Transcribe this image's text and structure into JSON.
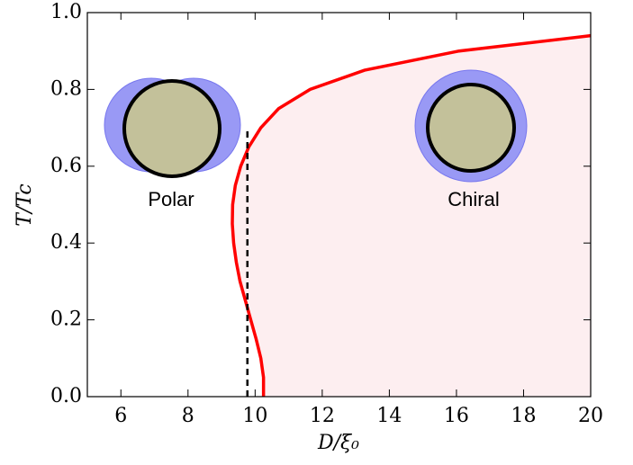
{
  "chart_data": {
    "type": "line",
    "x_label": "D/ξ₀",
    "y_label": "T/Tc",
    "annotations": [
      "Polar",
      "Chiral"
    ],
    "series": [
      {
        "color": "#ff0000",
        "fill": "#fdeef0",
        "dashed": false,
        "x": [
          10.25,
          10.25,
          10.17,
          10.03,
          9.87,
          9.71,
          9.55,
          9.44,
          9.36,
          9.32,
          9.33,
          9.41,
          9.57,
          9.81,
          10.17,
          10.7,
          11.64,
          13.26,
          16.08,
          20
        ],
        "values": [
          0,
          0.05,
          0.1,
          0.15,
          0.2,
          0.25,
          0.3,
          0.35,
          0.4,
          0.45,
          0.5,
          0.55,
          0.6,
          0.65,
          0.7,
          0.75,
          0.8,
          0.85,
          0.9,
          0.94
        ]
      },
      {
        "color": "#000000",
        "dashed": true,
        "x": [
          9.77,
          9.77
        ],
        "values": [
          0,
          0.7
        ]
      }
    ],
    "xlim": [
      5,
      20
    ],
    "ylim": [
      0,
      1
    ],
    "xticks": [
      6,
      8,
      10,
      12,
      14,
      16,
      18,
      20
    ],
    "yticks": [
      {
        "value": 0,
        "label": "0.0"
      },
      0.2,
      0.4,
      0.6,
      0.8,
      {
        "value": 1,
        "label": "1.0"
      }
    ]
  }
}
